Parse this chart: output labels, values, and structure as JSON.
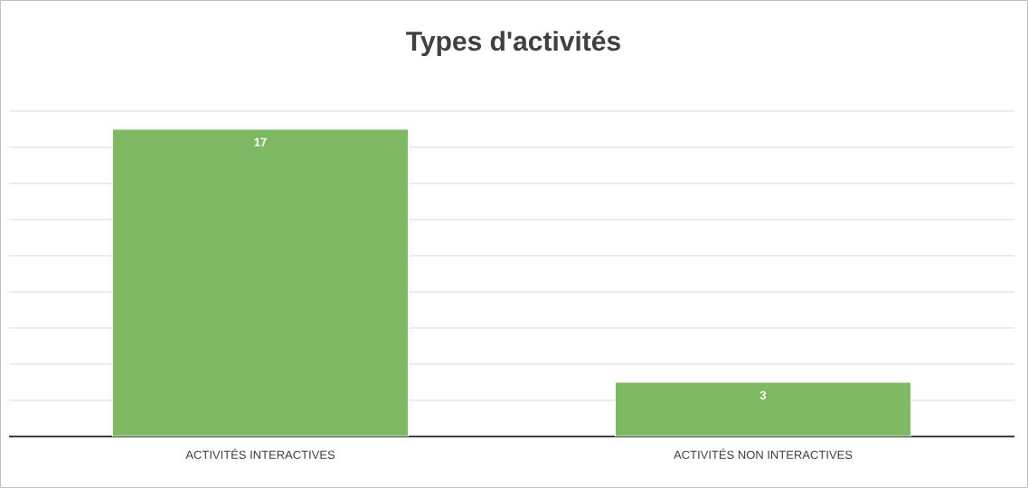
{
  "chart_data": {
    "type": "bar",
    "title": "Types d'activités",
    "categories": [
      "ACTIVITÉS INTERACTIVES",
      "ACTIVITÉS NON INTERACTIVES"
    ],
    "values": [
      17,
      3
    ],
    "color": "#80b964",
    "data_labels": true,
    "ylim": [
      0,
      18
    ],
    "yticks": [
      {
        "value": 0,
        "label": null
      },
      {
        "value": 2,
        "label": null
      },
      {
        "value": 4,
        "label": null
      },
      {
        "value": 6,
        "label": null
      },
      {
        "value": 8,
        "label": null
      },
      {
        "value": 10,
        "label": null
      },
      {
        "value": 12,
        "label": null
      },
      {
        "value": 14,
        "label": null
      },
      {
        "value": 16,
        "label": null
      },
      {
        "value": 18,
        "label": null
      }
    ],
    "grid": "y",
    "tick_labels": "x"
  }
}
